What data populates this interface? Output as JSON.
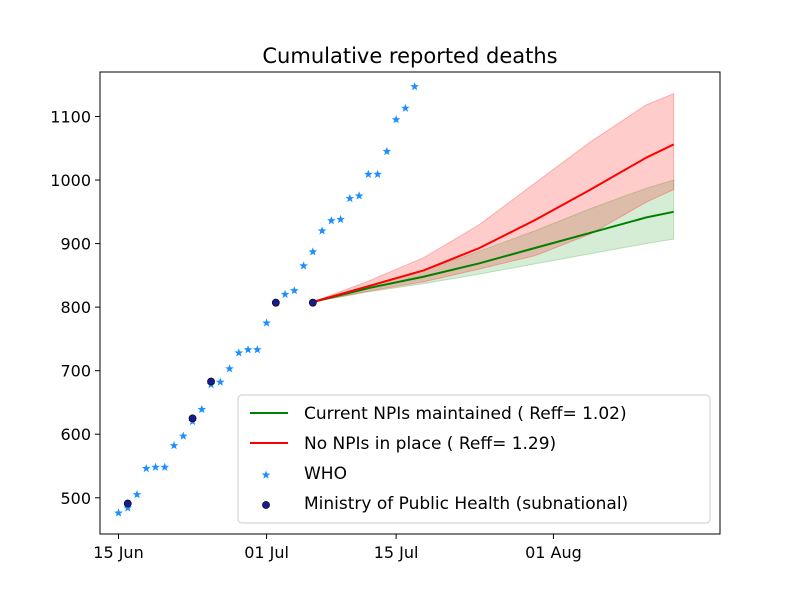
{
  "chart_data": {
    "type": "line",
    "title": "Cumulative reported deaths",
    "xlabel": "",
    "ylabel": "",
    "x_ticks": [
      {
        "date": "2020-06-15",
        "label": "15 Jun"
      },
      {
        "date": "2020-07-01",
        "label": "01 Jul"
      },
      {
        "date": "2020-07-15",
        "label": "15 Jul"
      },
      {
        "date": "2020-08-01",
        "label": "01 Aug"
      }
    ],
    "y_ticks": [
      500,
      600,
      700,
      800,
      900,
      1000,
      1100
    ],
    "xlim": [
      "2020-06-13",
      "2020-08-19"
    ],
    "ylim": [
      443,
      1170
    ],
    "grid": false,
    "legend_position": "lower-right",
    "series": [
      {
        "name": "Current NPIs maintained ( Reff= 1.02)",
        "kind": "line-band",
        "color": "#008000",
        "band_color": "#2ca02c",
        "points": [
          {
            "x": "2020-07-06",
            "y": 808,
            "lo": 808,
            "hi": 808
          },
          {
            "x": "2020-07-12",
            "y": 830,
            "lo": 824,
            "hi": 833
          },
          {
            "x": "2020-07-18",
            "y": 848,
            "lo": 837,
            "hi": 858
          },
          {
            "x": "2020-07-24",
            "y": 869,
            "lo": 852,
            "hi": 888
          },
          {
            "x": "2020-07-30",
            "y": 893,
            "lo": 868,
            "hi": 920
          },
          {
            "x": "2020-08-05",
            "y": 917,
            "lo": 884,
            "hi": 955
          },
          {
            "x": "2020-08-11",
            "y": 941,
            "lo": 900,
            "hi": 987
          },
          {
            "x": "2020-08-14",
            "y": 950,
            "lo": 907,
            "hi": 1000
          }
        ]
      },
      {
        "name": "No NPIs in place ( Reff= 1.29)",
        "kind": "line-band",
        "color": "#ff0000",
        "band_color": "#ff0000",
        "points": [
          {
            "x": "2020-07-06",
            "y": 808,
            "lo": 808,
            "hi": 808
          },
          {
            "x": "2020-07-12",
            "y": 833,
            "lo": 825,
            "hi": 841
          },
          {
            "x": "2020-07-18",
            "y": 858,
            "lo": 840,
            "hi": 878
          },
          {
            "x": "2020-07-24",
            "y": 893,
            "lo": 860,
            "hi": 930
          },
          {
            "x": "2020-07-30",
            "y": 937,
            "lo": 881,
            "hi": 995
          },
          {
            "x": "2020-08-05",
            "y": 985,
            "lo": 915,
            "hi": 1060
          },
          {
            "x": "2020-08-11",
            "y": 1035,
            "lo": 965,
            "hi": 1118
          },
          {
            "x": "2020-08-14",
            "y": 1056,
            "lo": 985,
            "hi": 1136
          }
        ]
      },
      {
        "name": "WHO",
        "kind": "scatter",
        "marker": "star",
        "color": "#1f8fff",
        "points": [
          {
            "x": "2020-06-15",
            "y": 476
          },
          {
            "x": "2020-06-16",
            "y": 484
          },
          {
            "x": "2020-06-17",
            "y": 505
          },
          {
            "x": "2020-06-18",
            "y": 546
          },
          {
            "x": "2020-06-19",
            "y": 548
          },
          {
            "x": "2020-06-20",
            "y": 548
          },
          {
            "x": "2020-06-21",
            "y": 582
          },
          {
            "x": "2020-06-22",
            "y": 597
          },
          {
            "x": "2020-06-23",
            "y": 620
          },
          {
            "x": "2020-06-24",
            "y": 639
          },
          {
            "x": "2020-06-25",
            "y": 678
          },
          {
            "x": "2020-06-26",
            "y": 682
          },
          {
            "x": "2020-06-27",
            "y": 703
          },
          {
            "x": "2020-06-28",
            "y": 728
          },
          {
            "x": "2020-06-29",
            "y": 733
          },
          {
            "x": "2020-06-30",
            "y": 733
          },
          {
            "x": "2020-07-01",
            "y": 775
          },
          {
            "x": "2020-07-02",
            "y": 807
          },
          {
            "x": "2020-07-03",
            "y": 820
          },
          {
            "x": "2020-07-04",
            "y": 826
          },
          {
            "x": "2020-07-05",
            "y": 865
          },
          {
            "x": "2020-07-06",
            "y": 887
          },
          {
            "x": "2020-07-07",
            "y": 920
          },
          {
            "x": "2020-07-08",
            "y": 936
          },
          {
            "x": "2020-07-09",
            "y": 938
          },
          {
            "x": "2020-07-10",
            "y": 971
          },
          {
            "x": "2020-07-11",
            "y": 975
          },
          {
            "x": "2020-07-12",
            "y": 1009
          },
          {
            "x": "2020-07-13",
            "y": 1009
          },
          {
            "x": "2020-07-14",
            "y": 1045
          },
          {
            "x": "2020-07-15",
            "y": 1095
          },
          {
            "x": "2020-07-16",
            "y": 1113
          },
          {
            "x": "2020-07-17",
            "y": 1147
          }
        ]
      },
      {
        "name": "Ministry of Public Health (subnational)",
        "kind": "scatter",
        "marker": "circle",
        "color": "#1a1a8c",
        "points": [
          {
            "x": "2020-06-16",
            "y": 491
          },
          {
            "x": "2020-06-23",
            "y": 625
          },
          {
            "x": "2020-06-25",
            "y": 683
          },
          {
            "x": "2020-07-02",
            "y": 807
          },
          {
            "x": "2020-07-06",
            "y": 807
          }
        ]
      }
    ]
  }
}
